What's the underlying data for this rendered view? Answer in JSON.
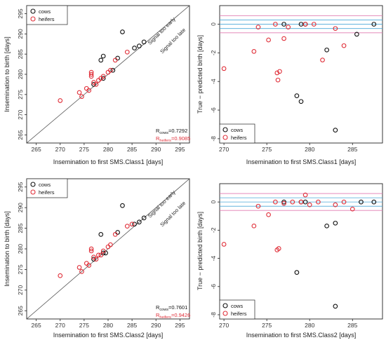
{
  "colors": {
    "cows": "#111111",
    "heifers": "#e0303a",
    "band_inner": "#4aa8d8",
    "band_outer": "#e07ab0",
    "frame": "#222222",
    "identity": "#555555"
  },
  "chart_data": [
    {
      "type": "scatter",
      "xlabel": "Insemination to first SMS.Class1 [days]",
      "ylabel": "Insemination to birth [days]",
      "xlim": [
        263,
        297
      ],
      "ylim": [
        263,
        297
      ],
      "xticks": [
        "265",
        "270",
        "275",
        "280",
        "285",
        "290",
        "295"
      ],
      "yticks": [
        "265",
        "270",
        "275",
        "280",
        "285",
        "290",
        "295"
      ],
      "legend": {
        "position": "top-left",
        "entries": [
          "cows",
          "heifers"
        ]
      },
      "identity_line": true,
      "annotations": {
        "early": "Signal too early",
        "late": "Signal too late"
      },
      "r_cows": {
        "symbol": "R",
        "sub": "cows",
        "value": "=0.7292"
      },
      "r_heifers": {
        "symbol": "R",
        "sub": "heifers",
        "value": "=0.9085"
      },
      "series": [
        {
          "name": "cows",
          "points": [
            [
              277,
              277.5
            ],
            [
              278.5,
              283.5
            ],
            [
              279,
              284.5
            ],
            [
              279,
              279
            ],
            [
              281,
              281
            ],
            [
              282,
              284
            ],
            [
              283,
              290.5
            ],
            [
              285.5,
              286.5
            ],
            [
              286.5,
              287
            ],
            [
              287.5,
              288
            ]
          ]
        },
        {
          "name": "heifers",
          "points": [
            [
              270,
              273.5
            ],
            [
              274,
              275.5
            ],
            [
              274.5,
              274.5
            ],
            [
              275.5,
              276.5
            ],
            [
              276,
              276
            ],
            [
              276.5,
              280
            ],
            [
              276.5,
              279.5
            ],
            [
              276.5,
              280.5
            ],
            [
              277,
              278
            ],
            [
              277.5,
              277.5
            ],
            [
              278,
              278.5
            ],
            [
              278.5,
              279
            ],
            [
              279,
              279.5
            ],
            [
              280,
              280.5
            ],
            [
              280.5,
              281
            ],
            [
              281.5,
              283.5
            ],
            [
              284,
              285.5
            ]
          ]
        }
      ]
    },
    {
      "type": "scatter",
      "xlabel": "Insemination to first SMS.Class1 [days]",
      "ylabel": "True − predicted birth [days]",
      "xlim": [
        269.5,
        288.5
      ],
      "ylim": [
        -8.3,
        1.3
      ],
      "xticks": [
        "270",
        "275",
        "280",
        "285"
      ],
      "yticks": [
        "0",
        "-2",
        "-4",
        "-6",
        "-8"
      ],
      "legend": {
        "position": "bottom-left",
        "entries": [
          "cows",
          "heifers"
        ]
      },
      "bands": {
        "inner": [
          -0.3,
          0.3
        ],
        "outer": [
          -0.6,
          0.6
        ]
      },
      "series": [
        {
          "name": "cows",
          "points": [
            [
              277,
              0
            ],
            [
              278.5,
              -5
            ],
            [
              279,
              0
            ],
            [
              279,
              -5.4
            ],
            [
              279.5,
              0
            ],
            [
              282,
              -1.8
            ],
            [
              283,
              -7.4
            ],
            [
              285.5,
              -0.7
            ],
            [
              287.5,
              0
            ]
          ]
        },
        {
          "name": "heifers",
          "points": [
            [
              270,
              -3.1
            ],
            [
              273.5,
              -1.9
            ],
            [
              274,
              -0.2
            ],
            [
              275.2,
              -1.1
            ],
            [
              276,
              0
            ],
            [
              276.2,
              -3.4
            ],
            [
              276.3,
              -3.9
            ],
            [
              276.5,
              -3.3
            ],
            [
              277,
              -1
            ],
            [
              277.5,
              -0.2
            ],
            [
              279.5,
              0
            ],
            [
              280.5,
              0
            ],
            [
              281.5,
              -2.5
            ],
            [
              283,
              -0.3
            ],
            [
              284,
              -1.5
            ]
          ]
        }
      ]
    },
    {
      "type": "scatter",
      "xlabel": "Insemination to first SMS.Class2 [days]",
      "ylabel": "Insemination to birth [days]",
      "xlim": [
        263,
        297
      ],
      "ylim": [
        263,
        297
      ],
      "xticks": [
        "265",
        "270",
        "275",
        "280",
        "285",
        "290",
        "295"
      ],
      "yticks": [
        "265",
        "270",
        "275",
        "280",
        "285",
        "290",
        "295"
      ],
      "legend": {
        "position": "top-left",
        "entries": [
          "cows",
          "heifers"
        ]
      },
      "identity_line": true,
      "annotations": {
        "early": "Signal too early",
        "late": "Signal too late"
      },
      "r_cows": {
        "symbol": "R",
        "sub": "cows",
        "value": "=0.7601"
      },
      "r_heifers": {
        "symbol": "R",
        "sub": "heifers",
        "value": "=0.9426"
      },
      "series": [
        {
          "name": "cows",
          "points": [
            [
              277,
              277.5
            ],
            [
              278.5,
              283.5
            ],
            [
              279,
              279
            ],
            [
              279.5,
              279
            ],
            [
              282,
              284
            ],
            [
              283,
              290.5
            ],
            [
              285.5,
              286
            ],
            [
              286.5,
              286.5
            ],
            [
              287.5,
              287.5
            ]
          ]
        },
        {
          "name": "heifers",
          "points": [
            [
              270,
              273.5
            ],
            [
              274,
              275.5
            ],
            [
              274.5,
              274.5
            ],
            [
              275.5,
              276.5
            ],
            [
              276,
              276
            ],
            [
              276.5,
              279.5
            ],
            [
              276.5,
              280
            ],
            [
              277,
              278
            ],
            [
              277.5,
              277.5
            ],
            [
              278,
              278.5
            ],
            [
              278.5,
              278.5
            ],
            [
              279,
              279.5
            ],
            [
              280,
              280.5
            ],
            [
              280.5,
              281
            ],
            [
              281.5,
              283.5
            ],
            [
              284,
              285.5
            ],
            [
              285,
              286
            ]
          ]
        }
      ]
    },
    {
      "type": "scatter",
      "xlabel": "Insemination to first SMS.Class2 [days]",
      "ylabel": "True − predicted birth [days]",
      "xlim": [
        269.5,
        288.5
      ],
      "ylim": [
        -8.3,
        1.3
      ],
      "xticks": [
        "270",
        "275",
        "280",
        "285"
      ],
      "yticks": [
        "0",
        "-2",
        "-4",
        "-6",
        "-8"
      ],
      "legend": {
        "position": "bottom-left",
        "entries": [
          "cows",
          "heifers"
        ]
      },
      "bands": {
        "inner": [
          -0.3,
          0.3
        ],
        "outer": [
          -0.6,
          0.6
        ]
      },
      "series": [
        {
          "name": "cows",
          "points": [
            [
              277,
              0
            ],
            [
              278.5,
              -5
            ],
            [
              279,
              0
            ],
            [
              279.5,
              0
            ],
            [
              282,
              -1.7
            ],
            [
              283,
              -7.4
            ],
            [
              283,
              -1.5
            ],
            [
              286,
              0
            ],
            [
              287.5,
              0
            ]
          ]
        },
        {
          "name": "heifers",
          "points": [
            [
              270,
              -3
            ],
            [
              273.5,
              -1.7
            ],
            [
              274,
              -0.3
            ],
            [
              275.2,
              -0.9
            ],
            [
              276,
              0
            ],
            [
              276.2,
              -3.4
            ],
            [
              276.4,
              -3.3
            ],
            [
              277,
              -0.1
            ],
            [
              278,
              0
            ],
            [
              279,
              0
            ],
            [
              279.5,
              0.5
            ],
            [
              280,
              -0.2
            ],
            [
              281,
              0
            ],
            [
              283,
              -0.2
            ],
            [
              284,
              0
            ],
            [
              285,
              -0.5
            ]
          ]
        }
      ]
    }
  ]
}
